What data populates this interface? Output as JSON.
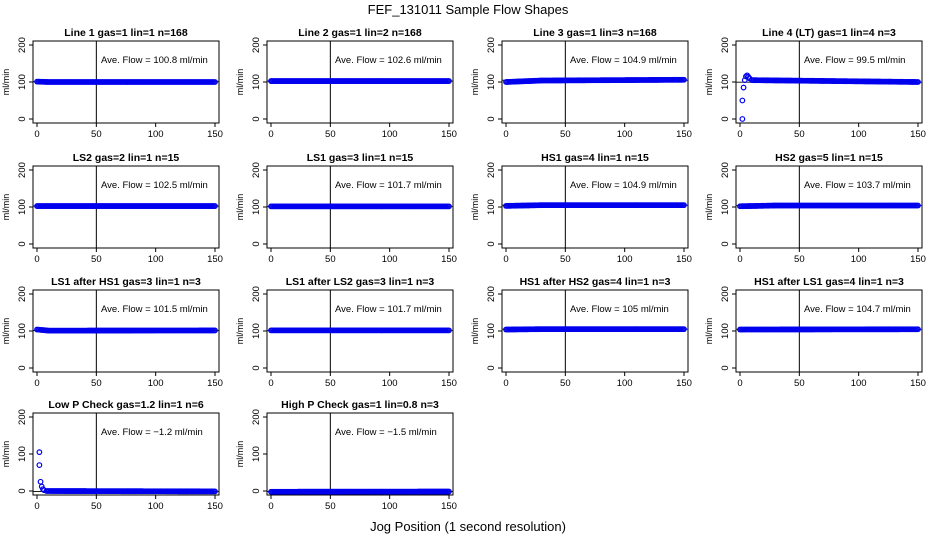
{
  "page_title": "FEF_131011  Sample Flow Shapes",
  "x_axis_label": "Jog Position (1 second resolution)",
  "y_axis_label": "ml/min",
  "colors": {
    "points": "#0000ee",
    "axis": "#000000",
    "background": "#ffffff"
  },
  "chart_data": [
    {
      "type": "scatter",
      "title": "Line 1 gas=1 lin=1 n=168",
      "annotation": "Ave. Flow = 100.8  ml/min",
      "avg": 100.8,
      "xlim": [
        0,
        150
      ],
      "ylim": [
        0,
        200
      ],
      "x_ticks": [
        0,
        50,
        100,
        150
      ],
      "y_ticks": [
        0,
        100,
        200
      ],
      "vline_x": 50,
      "shape": [
        {
          "x": 0,
          "y": 101
        },
        {
          "x": 10,
          "y": 100
        },
        {
          "x": 150,
          "y": 100
        }
      ]
    },
    {
      "type": "scatter",
      "title": "Line 2 gas=1 lin=2 n=168",
      "annotation": "Ave. Flow = 102.6  ml/min",
      "avg": 102.6,
      "xlim": [
        0,
        150
      ],
      "ylim": [
        0,
        200
      ],
      "x_ticks": [
        0,
        50,
        100,
        150
      ],
      "y_ticks": [
        0,
        100,
        200
      ],
      "vline_x": 50,
      "shape": [
        {
          "x": 0,
          "y": 102.6
        },
        {
          "x": 150,
          "y": 102.6
        }
      ]
    },
    {
      "type": "scatter",
      "title": "Line 3 gas=1 lin=3 n=168",
      "annotation": "Ave. Flow = 104.9  ml/min",
      "avg": 104.9,
      "xlim": [
        0,
        150
      ],
      "ylim": [
        0,
        200
      ],
      "x_ticks": [
        0,
        50,
        100,
        150
      ],
      "y_ticks": [
        0,
        100,
        200
      ],
      "vline_x": 50,
      "shape": [
        {
          "x": 0,
          "y": 100
        },
        {
          "x": 30,
          "y": 104
        },
        {
          "x": 150,
          "y": 106
        }
      ]
    },
    {
      "type": "scatter",
      "title": "Line 4 (LT) gas=1 lin=4 n=3",
      "annotation": "Ave. Flow = 99.5  ml/min",
      "avg": 99.5,
      "xlim": [
        0,
        150
      ],
      "ylim": [
        0,
        200
      ],
      "x_ticks": [
        0,
        50,
        100,
        150
      ],
      "y_ticks": [
        0,
        100,
        200
      ],
      "vline_x": 50,
      "shape": [
        {
          "x": 10,
          "y": 105
        },
        {
          "x": 150,
          "y": 100
        }
      ],
      "extra_points": [
        {
          "x": 2,
          "y": 0
        },
        {
          "x": 2,
          "y": 50
        },
        {
          "x": 3,
          "y": 85
        },
        {
          "x": 4,
          "y": 105
        },
        {
          "x": 5,
          "y": 115
        },
        {
          "x": 6,
          "y": 118
        },
        {
          "x": 7,
          "y": 114
        },
        {
          "x": 8,
          "y": 110
        }
      ]
    },
    {
      "type": "scatter",
      "title": "LS2 gas=2 lin=1 n=15",
      "annotation": "Ave. Flow = 102.5  ml/min",
      "avg": 102.5,
      "xlim": [
        0,
        150
      ],
      "ylim": [
        0,
        200
      ],
      "x_ticks": [
        0,
        50,
        100,
        150
      ],
      "y_ticks": [
        0,
        100,
        200
      ],
      "vline_x": 50,
      "shape": [
        {
          "x": 0,
          "y": 102.5
        },
        {
          "x": 150,
          "y": 102.5
        }
      ]
    },
    {
      "type": "scatter",
      "title": "LS1 gas=3 lin=1 n=15",
      "annotation": "Ave. Flow = 101.7  ml/min",
      "avg": 101.7,
      "xlim": [
        0,
        150
      ],
      "ylim": [
        0,
        200
      ],
      "x_ticks": [
        0,
        50,
        100,
        150
      ],
      "y_ticks": [
        0,
        100,
        200
      ],
      "vline_x": 50,
      "shape": [
        {
          "x": 0,
          "y": 101.7
        },
        {
          "x": 150,
          "y": 101.7
        }
      ]
    },
    {
      "type": "scatter",
      "title": "HS1 gas=4 lin=1 n=15",
      "annotation": "Ave. Flow = 104.9  ml/min",
      "avg": 104.9,
      "xlim": [
        0,
        150
      ],
      "ylim": [
        0,
        200
      ],
      "x_ticks": [
        0,
        50,
        100,
        150
      ],
      "y_ticks": [
        0,
        100,
        200
      ],
      "vline_x": 50,
      "shape": [
        {
          "x": 0,
          "y": 103
        },
        {
          "x": 30,
          "y": 105
        },
        {
          "x": 150,
          "y": 105
        }
      ]
    },
    {
      "type": "scatter",
      "title": "HS2 gas=5 lin=1 n=15",
      "annotation": "Ave. Flow = 103.7  ml/min",
      "avg": 103.7,
      "xlim": [
        0,
        150
      ],
      "ylim": [
        0,
        200
      ],
      "x_ticks": [
        0,
        50,
        100,
        150
      ],
      "y_ticks": [
        0,
        100,
        200
      ],
      "vline_x": 50,
      "shape": [
        {
          "x": 0,
          "y": 102
        },
        {
          "x": 30,
          "y": 104
        },
        {
          "x": 150,
          "y": 104
        }
      ]
    },
    {
      "type": "scatter",
      "title": "LS1 after HS1 gas=3 lin=1 n=3",
      "annotation": "Ave. Flow = 101.5  ml/min",
      "avg": 101.5,
      "xlim": [
        0,
        150
      ],
      "ylim": [
        0,
        200
      ],
      "x_ticks": [
        0,
        50,
        100,
        150
      ],
      "y_ticks": [
        0,
        100,
        200
      ],
      "vline_x": 50,
      "shape": [
        {
          "x": 0,
          "y": 104
        },
        {
          "x": 10,
          "y": 101
        },
        {
          "x": 150,
          "y": 101.5
        }
      ]
    },
    {
      "type": "scatter",
      "title": "LS1 after LS2 gas=3 lin=1 n=3",
      "annotation": "Ave. Flow = 101.7  ml/min",
      "avg": 101.7,
      "xlim": [
        0,
        150
      ],
      "ylim": [
        0,
        200
      ],
      "x_ticks": [
        0,
        50,
        100,
        150
      ],
      "y_ticks": [
        0,
        100,
        200
      ],
      "vline_x": 50,
      "shape": [
        {
          "x": 0,
          "y": 101.7
        },
        {
          "x": 150,
          "y": 101.7
        }
      ]
    },
    {
      "type": "scatter",
      "title": "HS1 after HS2 gas=4 lin=1 n=3",
      "annotation": "Ave. Flow = 105  ml/min",
      "avg": 105,
      "xlim": [
        0,
        150
      ],
      "ylim": [
        0,
        200
      ],
      "x_ticks": [
        0,
        50,
        100,
        150
      ],
      "y_ticks": [
        0,
        100,
        200
      ],
      "vline_x": 50,
      "shape": [
        {
          "x": 0,
          "y": 104
        },
        {
          "x": 30,
          "y": 105
        },
        {
          "x": 150,
          "y": 105
        }
      ]
    },
    {
      "type": "scatter",
      "title": "HS1 after LS1 gas=4 lin=1 n=3",
      "annotation": "Ave. Flow = 104.7  ml/min",
      "avg": 104.7,
      "xlim": [
        0,
        150
      ],
      "ylim": [
        0,
        200
      ],
      "x_ticks": [
        0,
        50,
        100,
        150
      ],
      "y_ticks": [
        0,
        100,
        200
      ],
      "vline_x": 50,
      "shape": [
        {
          "x": 0,
          "y": 104
        },
        {
          "x": 150,
          "y": 104.7
        }
      ]
    },
    {
      "type": "scatter",
      "title": "Low P Check gas=1.2 lin=1 n=6",
      "annotation": "Ave. Flow = −1.2  ml/min",
      "avg": -1.2,
      "xlim": [
        0,
        150
      ],
      "ylim": [
        0,
        200
      ],
      "x_ticks": [
        0,
        50,
        100,
        150
      ],
      "y_ticks": [
        0,
        100,
        200
      ],
      "vline_x": 50,
      "shape": [
        {
          "x": 8,
          "y": 0
        },
        {
          "x": 150,
          "y": -1
        }
      ],
      "extra_points": [
        {
          "x": 2,
          "y": 105
        },
        {
          "x": 2,
          "y": 70
        },
        {
          "x": 3,
          "y": 25
        },
        {
          "x": 4,
          "y": 12
        },
        {
          "x": 5,
          "y": 5
        },
        {
          "x": 6,
          "y": 2
        }
      ]
    },
    {
      "type": "scatter",
      "title": "High P Check gas=1 lin=0.8 n=3",
      "annotation": "Ave. Flow = −1.5  ml/min",
      "avg": -1.5,
      "xlim": [
        0,
        150
      ],
      "ylim": [
        0,
        200
      ],
      "x_ticks": [
        0,
        50,
        100,
        150
      ],
      "y_ticks": [
        0,
        100,
        200
      ],
      "vline_x": 50,
      "shape": [
        {
          "x": 0,
          "y": -2
        },
        {
          "x": 150,
          "y": -1.5
        }
      ]
    }
  ]
}
